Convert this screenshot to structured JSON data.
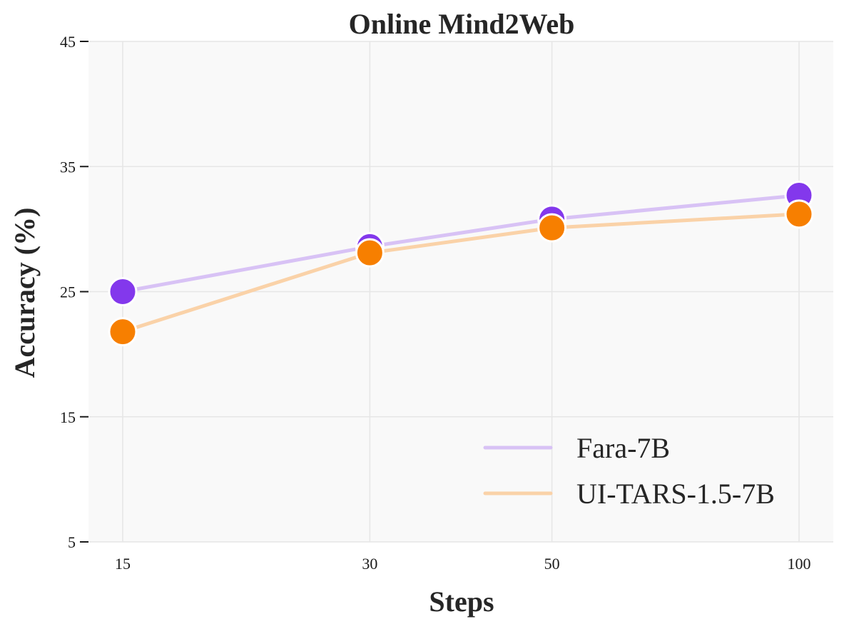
{
  "chart_data": {
    "type": "line",
    "title": "Online Mind2Web",
    "xlabel": "Steps",
    "ylabel": "Accuracy (%)",
    "x": [
      15,
      30,
      50,
      100
    ],
    "x_scale": "log",
    "x_tick_labels": [
      "15",
      "30",
      "50",
      "100"
    ],
    "ylim": [
      5,
      45
    ],
    "y_ticks": [
      5,
      15,
      25,
      35,
      45
    ],
    "y_tick_labels": [
      "5",
      "15",
      "25",
      "35",
      "45"
    ],
    "grid": true,
    "legend_position": "bottom-right",
    "series": [
      {
        "name": "Fara-7B",
        "values": [
          25.0,
          28.6,
          30.8,
          32.7
        ],
        "color": "#8338ec",
        "line_color": "#d8c2f5"
      },
      {
        "name": "UI-TARS-1.5-7B",
        "values": [
          21.8,
          28.1,
          30.1,
          31.2
        ],
        "color": "#f77f00",
        "line_color": "#fad2a8"
      }
    ]
  }
}
